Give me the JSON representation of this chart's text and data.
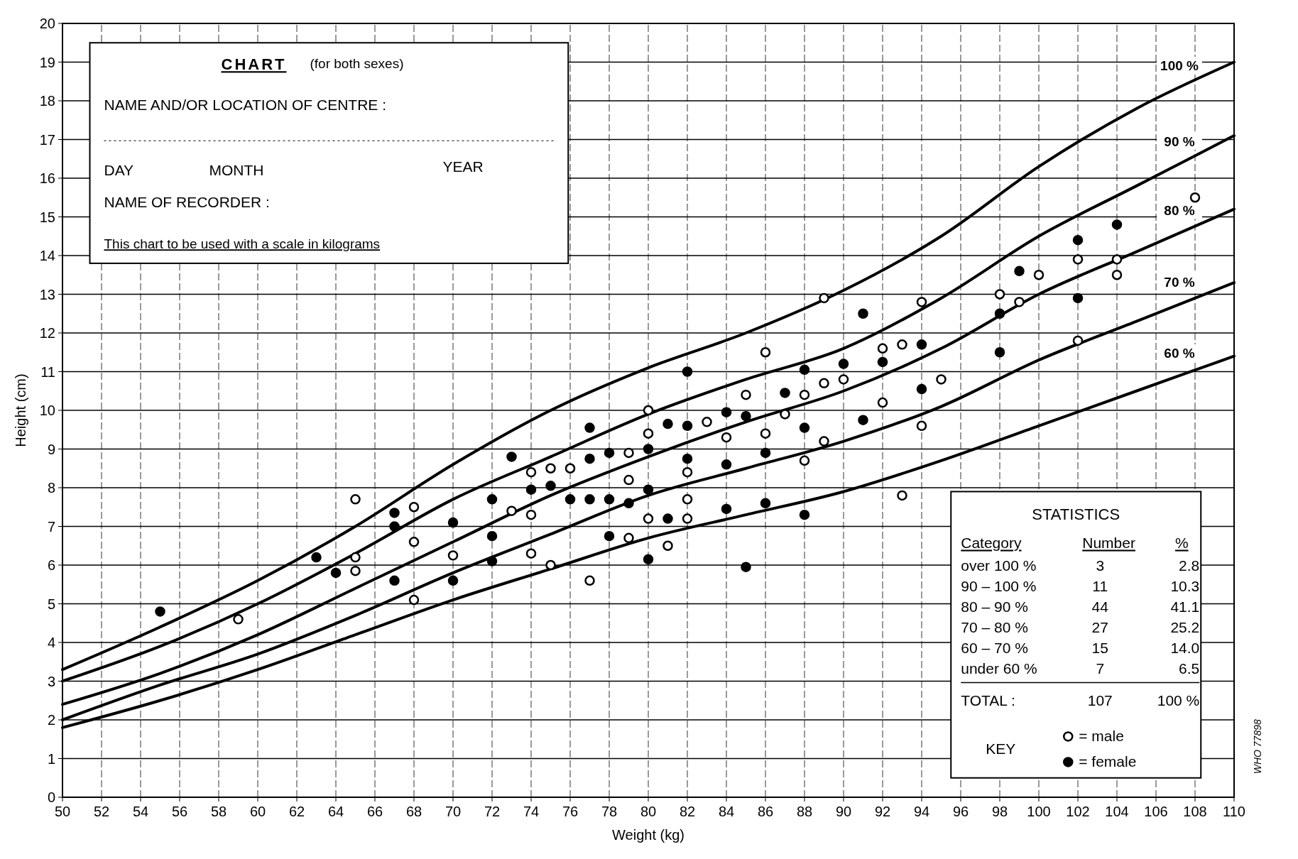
{
  "chart_data": {
    "type": "scatter",
    "xlabel": "Weight (kg)",
    "ylabel": "Height (cm)",
    "xlim": [
      50,
      110
    ],
    "xticks": [
      50,
      52,
      54,
      56,
      58,
      60,
      62,
      64,
      66,
      68,
      70,
      72,
      74,
      76,
      78,
      80,
      82,
      84,
      86,
      88,
      90,
      92,
      94,
      96,
      98,
      100,
      102,
      104,
      106,
      108,
      110
    ],
    "ylim": [
      0,
      20
    ],
    "yticks": [
      0,
      1,
      2,
      3,
      4,
      5,
      6,
      7,
      8,
      9,
      10,
      11,
      12,
      13,
      14,
      15,
      16,
      17,
      18,
      19,
      20
    ],
    "grid": true,
    "legend": "bottom right",
    "series": [
      {
        "name": "100 %",
        "type": "line",
        "color": "#000000",
        "marker": "none",
        "x": [
          50,
          55,
          60,
          65,
          70,
          75,
          80,
          85,
          90,
          95,
          100,
          105,
          110
        ],
        "values": [
          3.3,
          4.4,
          5.6,
          7.0,
          8.6,
          10.0,
          11.1,
          12.0,
          13.1,
          14.5,
          16.3,
          17.8,
          19.0
        ]
      },
      {
        "name": "90 %",
        "type": "line",
        "color": "#000000",
        "marker": "none",
        "x": [
          50,
          55,
          60,
          65,
          70,
          75,
          80,
          85,
          90,
          95,
          100,
          105,
          110
        ],
        "values": [
          3.0,
          3.9,
          5.0,
          6.3,
          7.7,
          8.8,
          9.9,
          10.8,
          11.6,
          12.9,
          14.5,
          15.8,
          17.1
        ]
      },
      {
        "name": "80 %",
        "type": "line",
        "color": "#000000",
        "marker": "none",
        "x": [
          50,
          55,
          60,
          65,
          70,
          75,
          80,
          85,
          90,
          95,
          100,
          105,
          110
        ],
        "values": [
          2.4,
          3.2,
          4.2,
          5.4,
          6.6,
          7.8,
          8.8,
          9.7,
          10.5,
          11.6,
          13.0,
          14.1,
          15.2
        ]
      },
      {
        "name": "70 %",
        "type": "line",
        "color": "#000000",
        "marker": "none",
        "x": [
          50,
          55,
          60,
          65,
          70,
          75,
          80,
          85,
          90,
          95,
          100,
          105,
          110
        ],
        "values": [
          2.0,
          2.9,
          3.7,
          4.7,
          5.8,
          6.8,
          7.8,
          8.5,
          9.2,
          10.1,
          11.3,
          12.3,
          13.3
        ]
      },
      {
        "name": "60 %",
        "type": "line",
        "color": "#000000",
        "marker": "none",
        "x": [
          50,
          55,
          60,
          65,
          70,
          75,
          80,
          85,
          90,
          95,
          100,
          105,
          110
        ],
        "values": [
          1.8,
          2.5,
          3.3,
          4.2,
          5.1,
          5.9,
          6.7,
          7.3,
          7.9,
          8.7,
          9.6,
          10.5,
          11.4
        ]
      },
      {
        "name": "= male",
        "color": "#ffffff",
        "marker": "circle",
        "x": [
          65,
          65,
          65,
          59,
          68,
          68,
          68,
          70,
          73,
          74,
          74,
          74,
          75,
          75,
          76,
          77,
          79,
          79,
          79,
          80,
          80,
          80,
          81,
          82,
          82,
          82,
          83,
          84,
          85,
          86,
          86,
          87,
          88,
          88,
          89,
          89,
          89,
          90,
          92,
          92,
          93,
          93,
          94,
          94,
          95,
          98,
          99,
          100,
          102,
          102,
          104,
          104,
          108
        ],
        "values": [
          7.7,
          6.2,
          5.85,
          4.6,
          7.5,
          6.6,
          5.1,
          6.25,
          7.4,
          8.4,
          7.3,
          6.3,
          8.5,
          6.0,
          8.5,
          5.6,
          8.9,
          8.2,
          6.7,
          10.0,
          9.4,
          7.2,
          6.5,
          8.4,
          7.7,
          7.2,
          9.7,
          9.3,
          10.4,
          11.5,
          9.4,
          9.9,
          10.4,
          8.7,
          12.9,
          10.7,
          9.2,
          10.8,
          11.6,
          10.2,
          11.7,
          7.8,
          12.8,
          9.6,
          10.8,
          13.0,
          12.8,
          13.5,
          13.9,
          11.8,
          13.9,
          13.5,
          15.5
        ]
      },
      {
        "name": "= female",
        "color": "#000000",
        "marker": "circle",
        "x": [
          55,
          63,
          64,
          67,
          67,
          67,
          70,
          70,
          72,
          72,
          72,
          73,
          74,
          75,
          76,
          77,
          77,
          77,
          78,
          78,
          78,
          79,
          80,
          80,
          80,
          81,
          81,
          82,
          82,
          82,
          84,
          84,
          84,
          85,
          85,
          86,
          86,
          87,
          88,
          88,
          88,
          90,
          91,
          91,
          92,
          94,
          94,
          98,
          98,
          99,
          102,
          102,
          104
        ],
        "values": [
          4.8,
          6.2,
          5.8,
          7.35,
          7.0,
          5.6,
          7.1,
          5.6,
          7.7,
          6.75,
          6.1,
          8.8,
          7.95,
          8.05,
          7.7,
          9.55,
          8.75,
          7.7,
          8.9,
          7.7,
          6.75,
          7.6,
          9.0,
          7.95,
          6.15,
          9.65,
          7.2,
          11.0,
          9.6,
          8.75,
          9.95,
          8.6,
          7.45,
          9.85,
          5.95,
          8.9,
          7.6,
          10.45,
          11.05,
          9.55,
          7.3,
          11.2,
          12.5,
          9.75,
          11.25,
          11.7,
          10.55,
          12.5,
          11.5,
          13.6,
          14.4,
          12.9,
          14.8
        ]
      }
    ],
    "annotations": [
      "CHART",
      "(for both sexes)",
      "NAME AND/OR LOCATION OF CENTRE :",
      "DAY",
      "MONTH",
      "YEAR",
      "NAME OF RECORDER :",
      "This chart to be used with a scale in kilograms",
      "STATISTICS",
      "Category",
      "Number",
      "%",
      "over 100 %",
      "3",
      "2.8",
      "90 – 100 %",
      "11",
      "10.3",
      "80 – 90 %",
      "44",
      "41.1",
      "70 – 80 %",
      "27",
      "25.2",
      "60 – 70 %",
      "15",
      "14.0",
      "under 60 %",
      "7",
      "6.5",
      "TOTAL :",
      "107",
      "100 %",
      "KEY",
      "WHO 77898"
    ]
  }
}
